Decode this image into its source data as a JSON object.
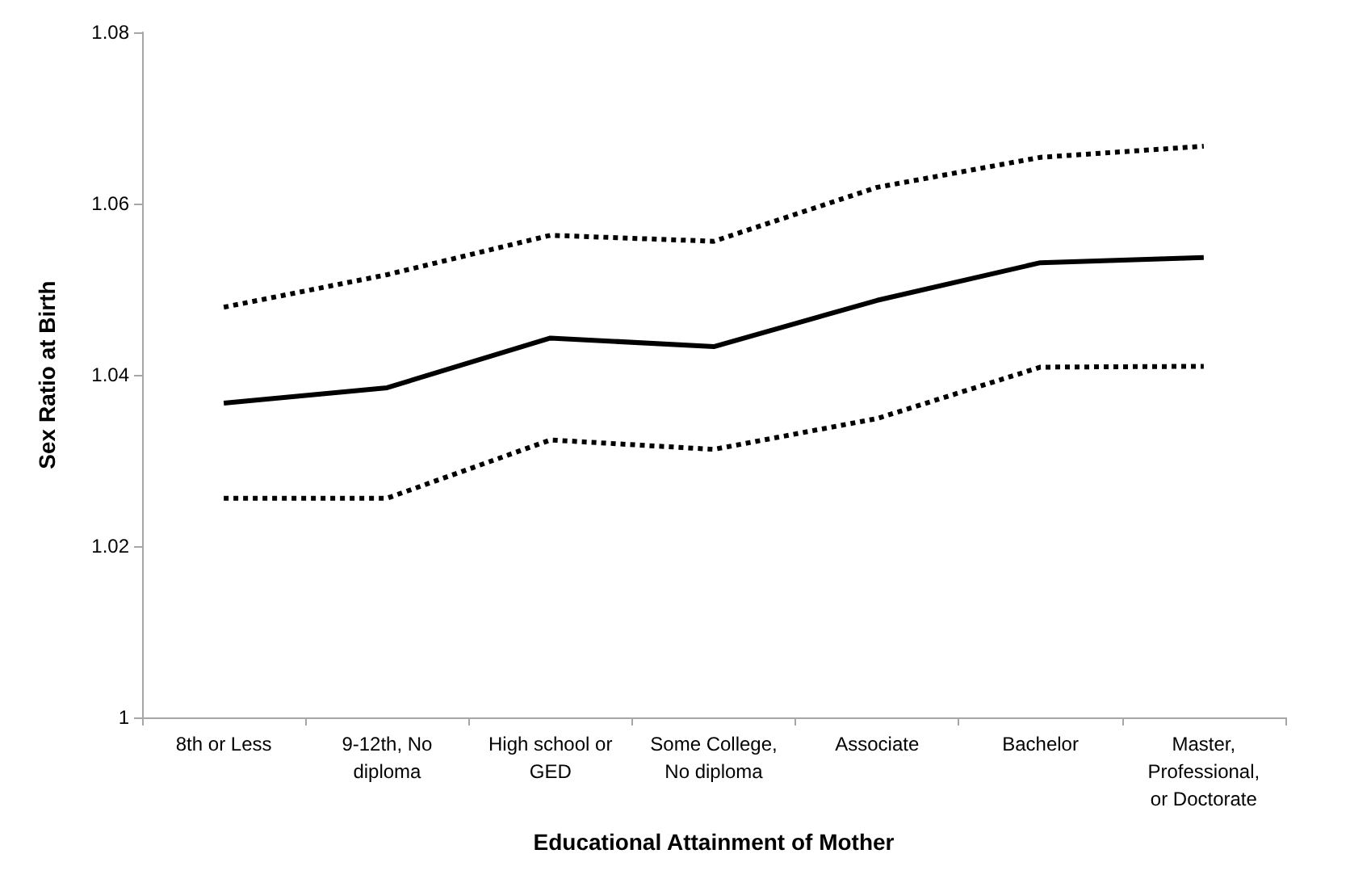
{
  "chart_data": {
    "type": "line",
    "xlabel": "Educational Attainment of Mother",
    "ylabel": "Sex Ratio at Birth",
    "categories": [
      "8th or Less",
      "9-12th, No diploma",
      "High school or GED",
      "Some College, No diploma",
      "Associate",
      "Bachelor",
      "Master, Professional, or Doctorate"
    ],
    "series": [
      {
        "color": "#000000",
        "line_style": "dotted",
        "values": [
          1.0479,
          1.0517,
          1.0563,
          1.0556,
          1.0619,
          1.0654,
          1.0667
        ]
      },
      {
        "color": "#000000",
        "line_style": "solid",
        "values": [
          1.0367,
          1.0385,
          1.0443,
          1.0433,
          1.0487,
          1.0531,
          1.0537
        ]
      },
      {
        "color": "#000000",
        "line_style": "dotted",
        "values": [
          1.0256,
          1.0256,
          1.0324,
          1.0313,
          1.0349,
          1.0409,
          1.041
        ]
      }
    ],
    "ylim": [
      1,
      1.08
    ],
    "yticks": [
      1,
      1.02,
      1.04,
      1.06,
      1.08
    ],
    "grid": false,
    "marker": "none"
  }
}
